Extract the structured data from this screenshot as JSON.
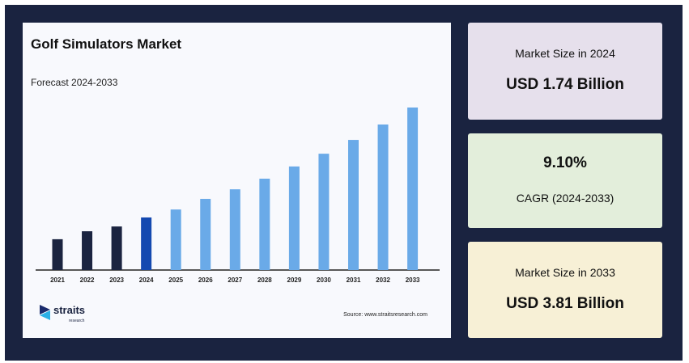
{
  "chart_data": {
    "type": "bar",
    "title": "Golf Simulators Market",
    "subtitle": "Forecast 2024-2033",
    "categories": [
      "2021",
      "2022",
      "2023",
      "2024",
      "2025",
      "2026",
      "2027",
      "2028",
      "2029",
      "2030",
      "2031",
      "2032",
      "2033"
    ],
    "values": [
      1.33,
      1.48,
      1.57,
      1.74,
      1.89,
      2.09,
      2.27,
      2.47,
      2.7,
      2.94,
      3.2,
      3.49,
      3.81
    ],
    "colors": [
      "#1b2440",
      "#1b2440",
      "#1b2440",
      "#1449b0",
      "#6aaae8",
      "#6aaae8",
      "#6aaae8",
      "#6aaae8",
      "#6aaae8",
      "#6aaae8",
      "#6aaae8",
      "#6aaae8",
      "#6aaae8"
    ],
    "ylim": [
      0.75,
      4.0
    ],
    "source": "Source: www.straitsresearch.com"
  },
  "logo": {
    "name": "straits",
    "tagline": "research"
  },
  "cards": [
    {
      "label": "Market Size in 2024",
      "value": "USD 1.74 Billion",
      "color": "#e6e0ec"
    },
    {
      "label": "CAGR (2024-2033)",
      "value": "9.10%",
      "color": "#e3eedb"
    },
    {
      "label": "Market Size in 2033",
      "value": "USD 3.81 Billion",
      "color": "#f7f0d6"
    }
  ]
}
